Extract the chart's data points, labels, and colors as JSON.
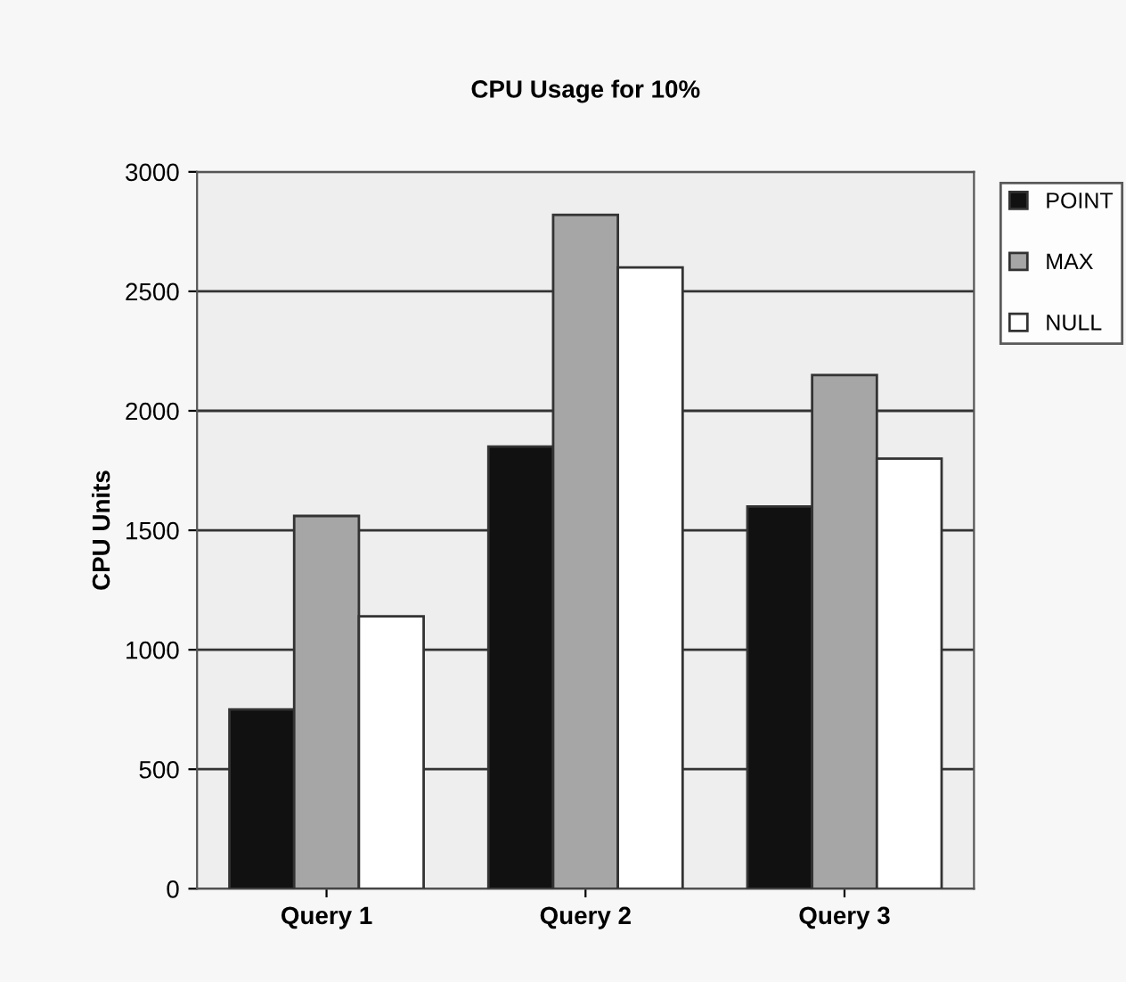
{
  "chart_data": {
    "type": "bar",
    "title": "CPU Usage for 10%",
    "ylabel": "CPU Units",
    "categories": [
      "Query 1",
      "Query 2",
      "Query 3"
    ],
    "series": [
      {
        "name": "POINT",
        "color": "#111111",
        "values": [
          750,
          1850,
          1600
        ]
      },
      {
        "name": "MAX",
        "color": "#a6a6a6",
        "values": [
          1560,
          2820,
          2150
        ]
      },
      {
        "name": "NULL",
        "color": "#ffffff",
        "values": [
          1140,
          2600,
          1800
        ]
      }
    ],
    "ylim": [
      0,
      3000
    ],
    "yticks": [
      0,
      500,
      1000,
      1500,
      2000,
      2500,
      3000
    ],
    "grid": "y",
    "legend": "right"
  }
}
